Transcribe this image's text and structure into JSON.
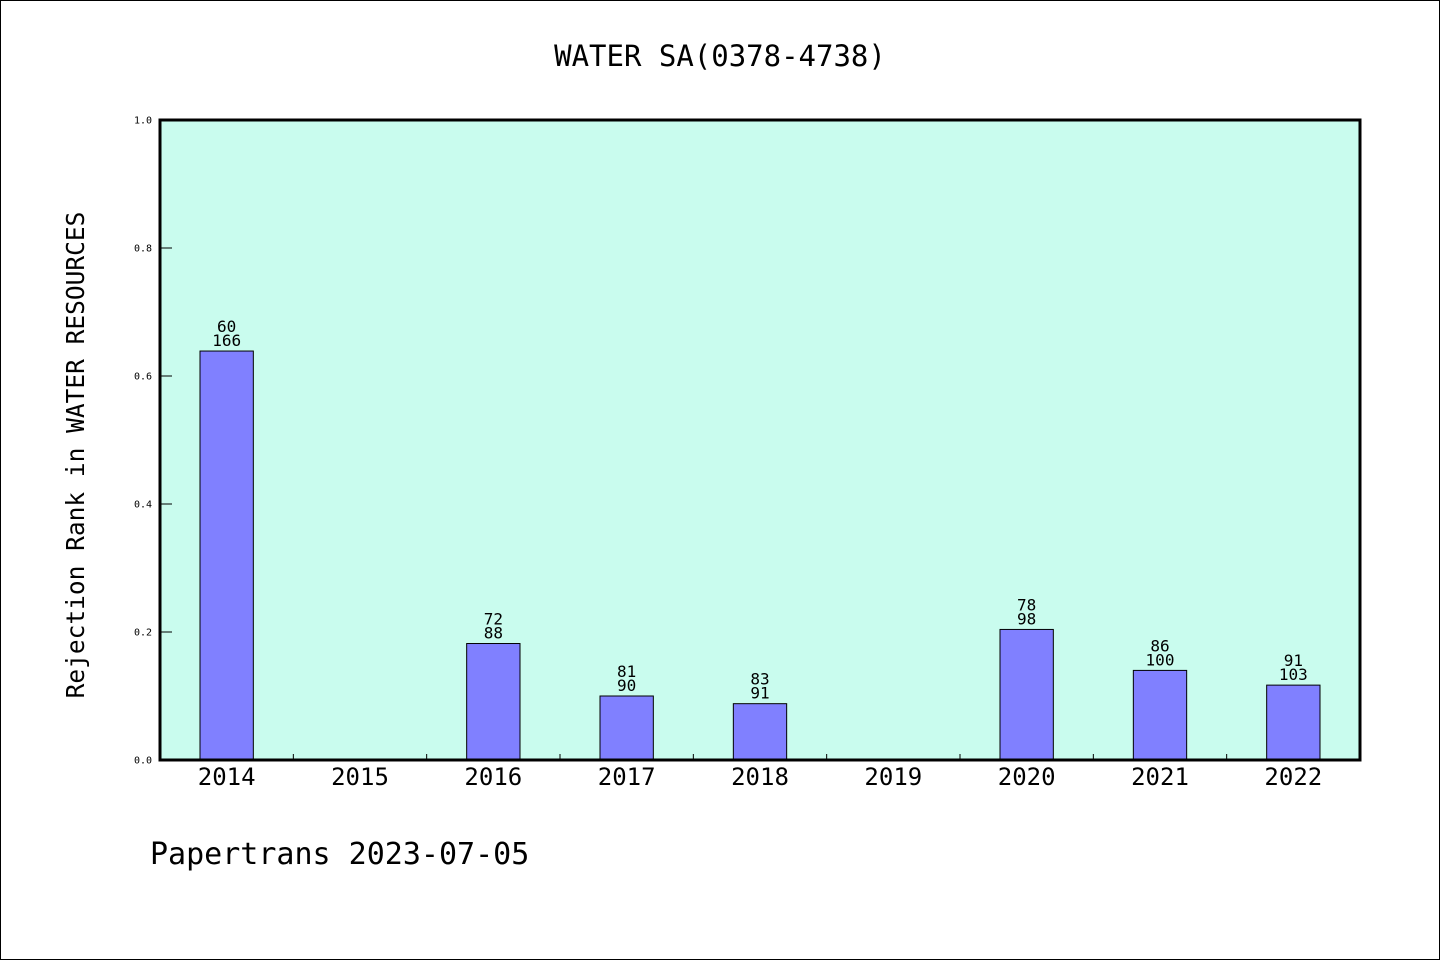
{
  "chart_data": {
    "type": "bar",
    "title": "WATER SA(0378-4738)",
    "ylabel": "Rejection Rank in WATER RESOURCES",
    "categories": [
      "2014",
      "2015",
      "2016",
      "2017",
      "2018",
      "2019",
      "2020",
      "2021",
      "2022"
    ],
    "values": [
      0.639,
      null,
      0.182,
      0.1,
      0.088,
      null,
      0.204,
      0.14,
      0.117
    ],
    "data_labels": [
      [
        "60",
        "166"
      ],
      null,
      [
        "72",
        "88"
      ],
      [
        "81",
        "90"
      ],
      [
        "83",
        "91"
      ],
      null,
      [
        "78",
        "98"
      ],
      [
        "86",
        "100"
      ],
      [
        "91",
        "103"
      ]
    ],
    "ylim": [
      0,
      1
    ],
    "yticks": [
      "0.0",
      "0.2",
      "0.4",
      "0.6",
      "0.8",
      "1.0"
    ],
    "grid": false,
    "colors": {
      "bar": "#8080ff",
      "bar_edge": "#000000",
      "plot_background": "#c9fcee",
      "axis": "#000000"
    }
  },
  "footer": "Papertrans 2023-07-05"
}
